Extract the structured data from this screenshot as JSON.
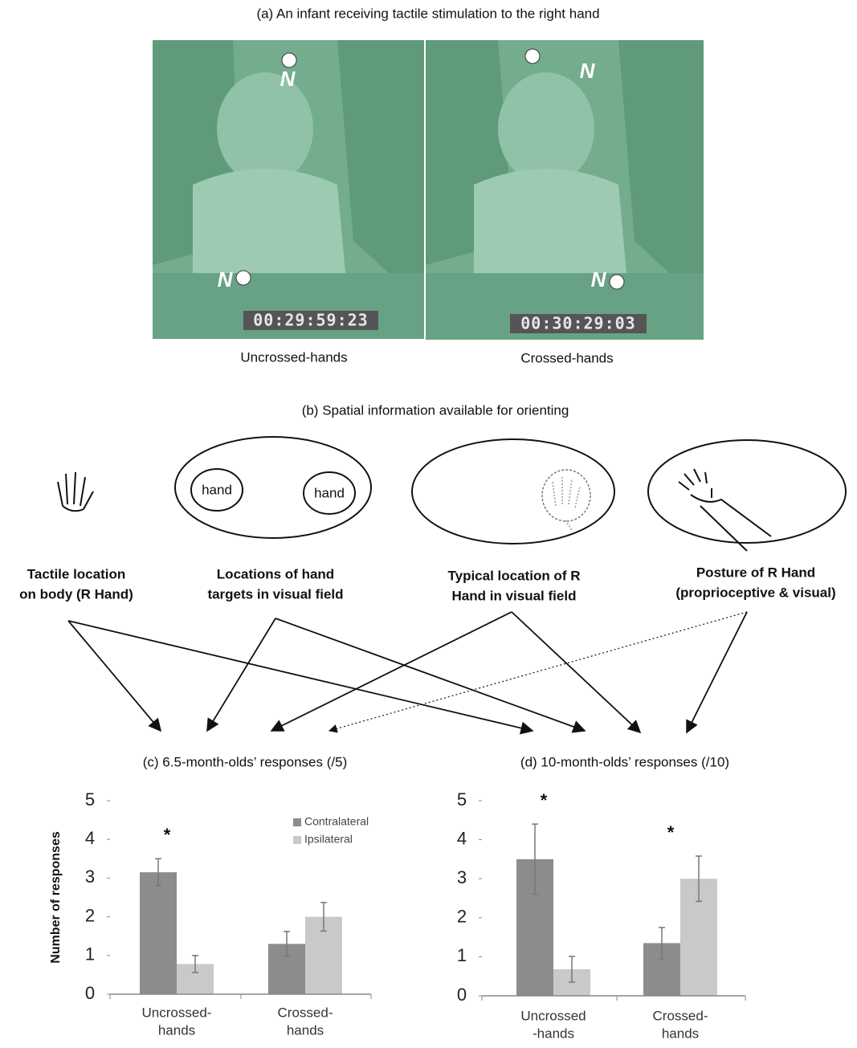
{
  "panel_a": {
    "title": "(a) An infant receiving tactile stimulation to the right hand",
    "photos": [
      {
        "caption": "Uncrossed-hands",
        "timecode": "00:29:59:23",
        "markers": [
          "N",
          "N"
        ]
      },
      {
        "caption": "Crossed-hands",
        "timecode": "00:30:29:03",
        "markers": [
          "N",
          "N"
        ]
      }
    ]
  },
  "panel_b": {
    "title": "(b) Spatial information available for orienting",
    "target_labels": [
      "hand",
      "hand"
    ],
    "cues": [
      [
        "Tactile location",
        "on body (R Hand)"
      ],
      [
        "Locations of hand",
        "targets in visual field"
      ],
      [
        "Typical location of R",
        "Hand in visual field"
      ],
      [
        "Posture of R Hand",
        "(proprioceptive & visual)"
      ]
    ]
  },
  "chart_data": [
    {
      "type": "bar",
      "title": "(c) 6.5-month-olds’ responses (/5)",
      "y_label": "Number of responses",
      "categories": [
        [
          "Uncrossed-",
          "hands"
        ],
        [
          "Crossed-",
          "hands"
        ]
      ],
      "series": [
        {
          "name": "Contralateral",
          "color": "#8c8c8c",
          "values": [
            3.15,
            1.3
          ],
          "errors": [
            0.35,
            0.32
          ]
        },
        {
          "name": "Ipsilateral",
          "color": "#c9c9c9",
          "values": [
            0.78,
            2.0
          ],
          "errors": [
            0.22,
            0.37
          ]
        }
      ],
      "significance": [
        "*",
        null
      ],
      "ylim": [
        0,
        5
      ],
      "yticks": [
        0,
        1,
        2,
        3,
        4,
        5
      ],
      "legend": "top-right"
    },
    {
      "type": "bar",
      "title": "(d) 10-month-olds’ responses (/10)",
      "categories": [
        [
          "Uncrossed",
          "-hands"
        ],
        [
          "Crossed-",
          "hands"
        ]
      ],
      "series": [
        {
          "name": "Contralateral",
          "color": "#8c8c8c",
          "values": [
            3.5,
            1.35
          ],
          "errors": [
            0.9,
            0.4
          ]
        },
        {
          "name": "Ipsilateral",
          "color": "#c9c9c9",
          "values": [
            0.68,
            3.0
          ],
          "errors": [
            0.33,
            0.58
          ]
        }
      ],
      "significance": [
        "*",
        "*"
      ],
      "ylim": [
        0,
        5
      ],
      "yticks": [
        0,
        1,
        2,
        3,
        4,
        5
      ]
    }
  ]
}
